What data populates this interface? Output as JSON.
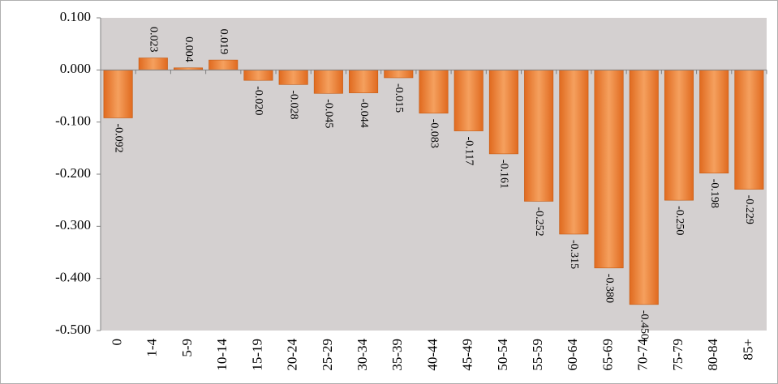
{
  "chart_data": {
    "type": "bar",
    "title": "",
    "xlabel": "",
    "ylabel": "",
    "categories": [
      "0",
      "1-4",
      "5-9",
      "10-14",
      "15-19",
      "20-24",
      "25-29",
      "30-34",
      "35-39",
      "40-44",
      "45-49",
      "50-54",
      "55-59",
      "60-64",
      "65-69",
      "70-74",
      "75-79",
      "80-84",
      "85+"
    ],
    "values": [
      -0.092,
      0.023,
      0.004,
      0.019,
      -0.02,
      -0.028,
      -0.045,
      -0.044,
      -0.015,
      -0.083,
      -0.117,
      -0.161,
      -0.252,
      -0.315,
      -0.38,
      -0.45,
      -0.25,
      -0.198,
      -0.229
    ],
    "value_labels": [
      "-0.092",
      "0.023",
      "0.004",
      "0.019",
      "-0.020",
      "-0.028",
      "-0.045",
      "-0.044",
      "-0.015",
      "-0.083",
      "-0.117",
      "-0.161",
      "-0.252",
      "-0.315",
      "-0.380",
      "-0.450",
      "-0.250",
      "-0.198",
      "-0.229"
    ],
    "ylim": [
      -0.5,
      0.1
    ],
    "yticks": [
      0.1,
      0.0,
      -0.1,
      -0.2,
      -0.3,
      -0.4,
      -0.5
    ],
    "ytick_labels": [
      "0.100",
      "0.000",
      "-0.100",
      "-0.200",
      "-0.300",
      "-0.400",
      "-0.500"
    ],
    "grid": false,
    "legend": "none",
    "colors": {
      "bar_fill_light": "#f5a05e",
      "bar_fill_dark": "#e06a1f",
      "bar_stroke": "#c55a11",
      "plot_background": "#d4d0d0",
      "axis": "#808080"
    }
  }
}
